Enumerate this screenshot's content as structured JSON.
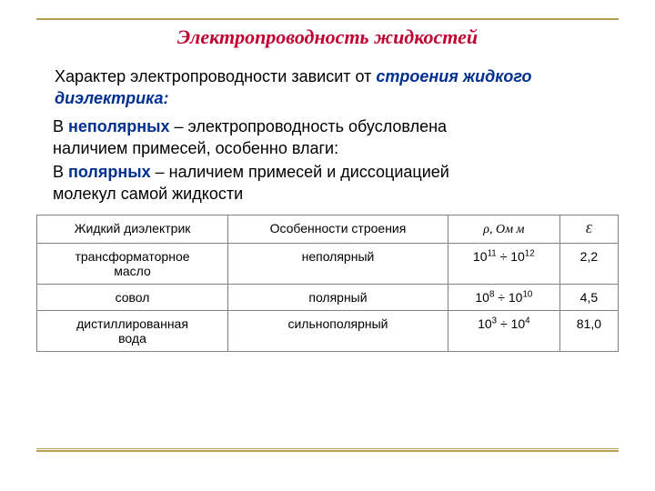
{
  "title": "Электропроводность жидкостей",
  "intro_plain": "Характер электропроводности зависит от ",
  "intro_emph": "строения жидкого диэлектрика:",
  "bullets": [
    {
      "lead": "В ",
      "key": "неполярных",
      "tail1": " – электропроводность обусловлена",
      "tail2": "наличием примесей, особенно влаги:"
    },
    {
      "lead": "В ",
      "key": "полярных",
      "tail1": " – наличием примесей и диссоциацией",
      "tail2": "молекул самой жидкости"
    }
  ],
  "table": {
    "headers": {
      "col1": "Жидкий диэлектрик",
      "col2": "Особенности строения",
      "col3_sym": "ρ",
      "col3_unit": ",  Ом м",
      "col4_sym": "Ɛ"
    },
    "rows": [
      {
        "name_l1": "трансформаторное",
        "name_l2": "масло",
        "struct": "неполярный",
        "rho_b1": "10",
        "rho_e1": "11",
        "rho_div": " ÷ ",
        "rho_b2": "10",
        "rho_e2": "12",
        "eps": "2,2"
      },
      {
        "name_l1": "совол",
        "name_l2": "",
        "struct": "полярный",
        "rho_b1": "10",
        "rho_e1": "8",
        "rho_div": " ÷ ",
        "rho_b2": "10",
        "rho_e2": "10",
        "eps": "4,5"
      },
      {
        "name_l1": "дистиллированная",
        "name_l2": "вода",
        "struct": "сильнополярный",
        "rho_b1": "10",
        "rho_e1": "3",
        "rho_div": " ÷ ",
        "rho_b2": "10",
        "rho_e2": "4",
        "eps": "81,0"
      }
    ]
  },
  "colors": {
    "title": "#c00030",
    "rule": "#b8a050",
    "emph": "#003090",
    "border": "#808080",
    "text": "#000000",
    "bg": "#ffffff"
  }
}
